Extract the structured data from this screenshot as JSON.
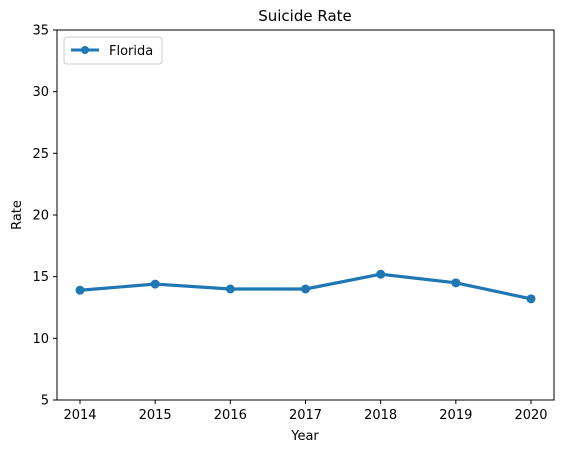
{
  "chart_data": {
    "type": "line",
    "title": "Suicide Rate",
    "xlabel": "Year",
    "ylabel": "Rate",
    "x": [
      2014,
      2015,
      2016,
      2017,
      2018,
      2019,
      2020
    ],
    "series": [
      {
        "name": "Florida",
        "color": "#1f77b4",
        "values": [
          13.9,
          14.4,
          14.0,
          14.0,
          15.2,
          14.5,
          13.2
        ]
      }
    ],
    "ylim": [
      5,
      35
    ],
    "yticks": [
      5,
      10,
      15,
      20,
      25,
      30,
      35
    ],
    "xticks": [
      2014,
      2015,
      2016,
      2017,
      2018,
      2019,
      2020
    ],
    "grid": false,
    "legend_position": "top-left"
  }
}
